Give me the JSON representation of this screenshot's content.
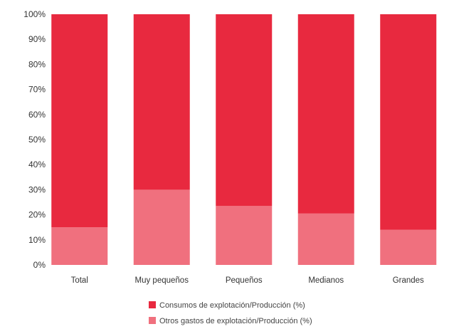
{
  "chart_data": {
    "type": "bar",
    "stacked": true,
    "categories": [
      "Total",
      "Muy pequeños",
      "Pequeños",
      "Medianos",
      "Grandes"
    ],
    "series": [
      {
        "name": "Otros gastos de explotación/Producción (%)",
        "color": "#f0707e",
        "values": [
          15,
          30,
          23.5,
          20.5,
          14
        ]
      },
      {
        "name": "Consumos de explotación/Producción (%)",
        "color": "#e8293f",
        "values": [
          85,
          70,
          76.5,
          79.5,
          86
        ]
      }
    ],
    "yticks": [
      "0%",
      "10%",
      "20%",
      "30%",
      "40%",
      "50%",
      "60%",
      "70%",
      "80%",
      "90%",
      "100%"
    ],
    "ylim": [
      0,
      100
    ],
    "xlabel": "",
    "ylabel": "",
    "title": "",
    "grid": false,
    "legend_position": "bottom-right",
    "legend_order": [
      1,
      0
    ]
  }
}
